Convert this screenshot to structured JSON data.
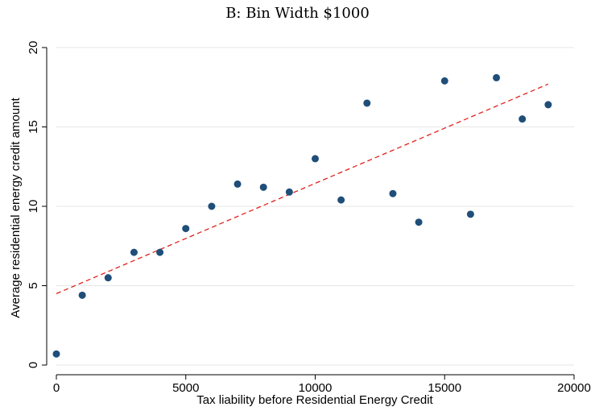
{
  "chart_data": {
    "type": "scatter",
    "title": "B: Bin Width $1000",
    "xlabel": "Tax liability before Residential Energy Credit",
    "ylabel": "Average residential energy credit amount",
    "xlim": [
      0,
      20000
    ],
    "ylim": [
      0,
      20
    ],
    "xticks": [
      0,
      5000,
      10000,
      15000,
      20000
    ],
    "yticks": [
      0,
      5,
      10,
      15,
      20
    ],
    "xtick_labels": [
      "0",
      "5000",
      "10000",
      "15000",
      "20000"
    ],
    "ytick_labels": [
      "0",
      "5",
      "10",
      "15",
      "20"
    ],
    "grid": "horizontal",
    "points": [
      {
        "x": 0,
        "y": 0.7
      },
      {
        "x": 1000,
        "y": 4.4
      },
      {
        "x": 2000,
        "y": 5.5
      },
      {
        "x": 3000,
        "y": 7.1
      },
      {
        "x": 4000,
        "y": 7.1
      },
      {
        "x": 5000,
        "y": 8.6
      },
      {
        "x": 6000,
        "y": 10.0
      },
      {
        "x": 7000,
        "y": 11.4
      },
      {
        "x": 8000,
        "y": 11.2
      },
      {
        "x": 9000,
        "y": 10.9
      },
      {
        "x": 10000,
        "y": 13.0
      },
      {
        "x": 11000,
        "y": 10.4
      },
      {
        "x": 12000,
        "y": 16.5
      },
      {
        "x": 13000,
        "y": 10.8
      },
      {
        "x": 14000,
        "y": 9.0
      },
      {
        "x": 15000,
        "y": 17.9
      },
      {
        "x": 16000,
        "y": 9.5
      },
      {
        "x": 17000,
        "y": 18.1
      },
      {
        "x": 18000,
        "y": 15.5
      },
      {
        "x": 19000,
        "y": 16.4
      }
    ],
    "fit_line": {
      "style": "dashed",
      "color": "#e0231e",
      "x": [
        0,
        19000
      ],
      "y": [
        4.5,
        17.7
      ]
    },
    "marker_color": "#1f4e79"
  }
}
